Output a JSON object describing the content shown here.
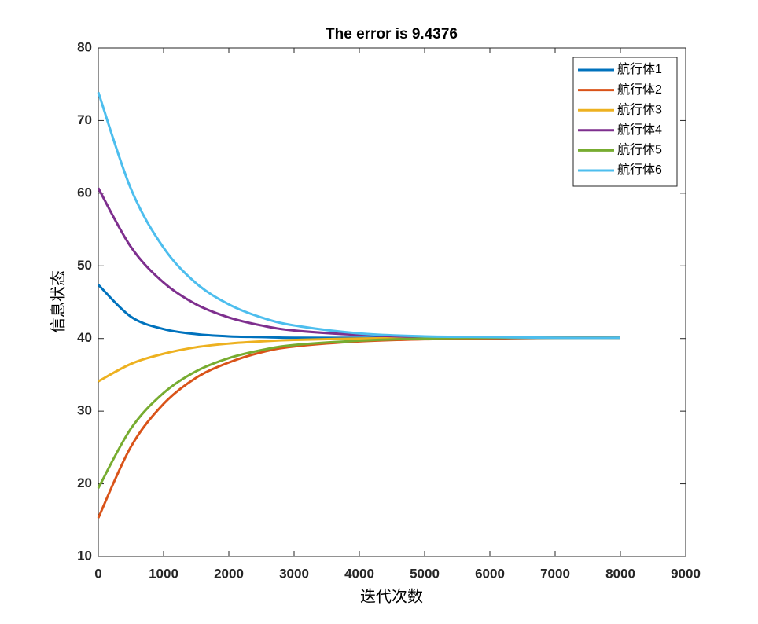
{
  "chart_data": {
    "type": "line",
    "title": "The error is 9.4376",
    "x_label": "迭代次数",
    "y_label": "信息状态",
    "x": [
      0,
      500,
      1000,
      1500,
      2000,
      2500,
      3000,
      4000,
      5000,
      6000,
      7000,
      8000
    ],
    "series": [
      {
        "name": "航行体1",
        "color": "#0072BD",
        "values": [
          47.4,
          43.0,
          41.3,
          40.6,
          40.3,
          40.2,
          40.1,
          40.1,
          40.1,
          40.1,
          40.1,
          40.1
        ]
      },
      {
        "name": "航行体2",
        "color": "#D95319",
        "values": [
          15.3,
          25.1,
          31.0,
          34.6,
          36.7,
          38.1,
          38.9,
          39.6,
          39.9,
          40.0,
          40.1,
          40.1
        ]
      },
      {
        "name": "航行体3",
        "color": "#EDB120",
        "values": [
          34.1,
          36.5,
          37.9,
          38.8,
          39.3,
          39.6,
          39.8,
          40.0,
          40.1,
          40.1,
          40.1,
          40.1
        ]
      },
      {
        "name": "航行体4",
        "color": "#7E2F8E",
        "values": [
          60.7,
          52.6,
          47.7,
          44.7,
          42.9,
          41.8,
          41.1,
          40.5,
          40.2,
          40.1,
          40.1,
          40.1
        ]
      },
      {
        "name": "航行体5",
        "color": "#77AC30",
        "values": [
          19.4,
          27.6,
          32.5,
          35.5,
          37.3,
          38.4,
          39.1,
          39.7,
          40.0,
          40.1,
          40.1,
          40.1
        ]
      },
      {
        "name": "航行体6",
        "color": "#4DBEEE",
        "values": [
          73.9,
          60.6,
          52.5,
          47.6,
          44.7,
          42.9,
          41.8,
          40.7,
          40.3,
          40.2,
          40.1,
          40.1
        ]
      }
    ],
    "xlim": [
      0,
      9000
    ],
    "xticks": [
      0,
      1000,
      2000,
      3000,
      4000,
      5000,
      6000,
      7000,
      8000,
      9000
    ],
    "ylim": [
      10,
      80
    ],
    "yticks": [
      10,
      20,
      30,
      40,
      50,
      60,
      70,
      80
    ],
    "legend": "top-right",
    "grid": false
  }
}
